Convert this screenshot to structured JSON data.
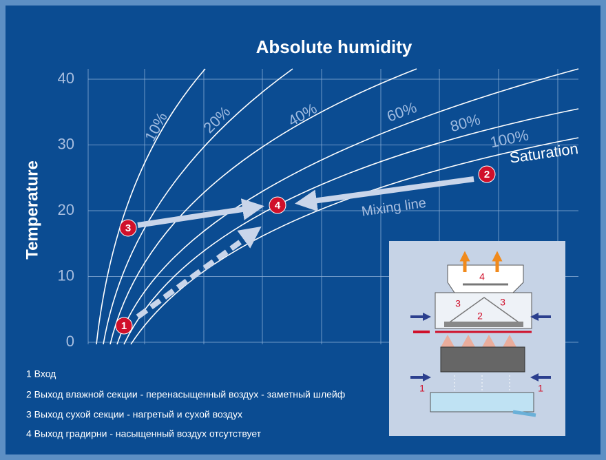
{
  "title": "Absolute humidity",
  "y_axis": {
    "label": "Temperature",
    "ticks": [
      0,
      10,
      20,
      30,
      40
    ]
  },
  "curves": [
    "10%",
    "20%",
    "40%",
    "60%",
    "80%",
    "100%"
  ],
  "annotations": {
    "saturation": "Saturation",
    "mixing_line": "Mixing line"
  },
  "points": [
    "1",
    "2",
    "3",
    "4"
  ],
  "legend": [
    "1 Вход",
    "2 Выход влажной секции - перенасыщенный воздух - заметный шлейф",
    "3 Выход сухой секции - нагретый и сухой воздух",
    "4 Выход градирни - насыщенный воздух отсутствует"
  ],
  "inset": {
    "labels": [
      "4",
      "3",
      "3",
      "2",
      "1",
      "1"
    ]
  }
}
